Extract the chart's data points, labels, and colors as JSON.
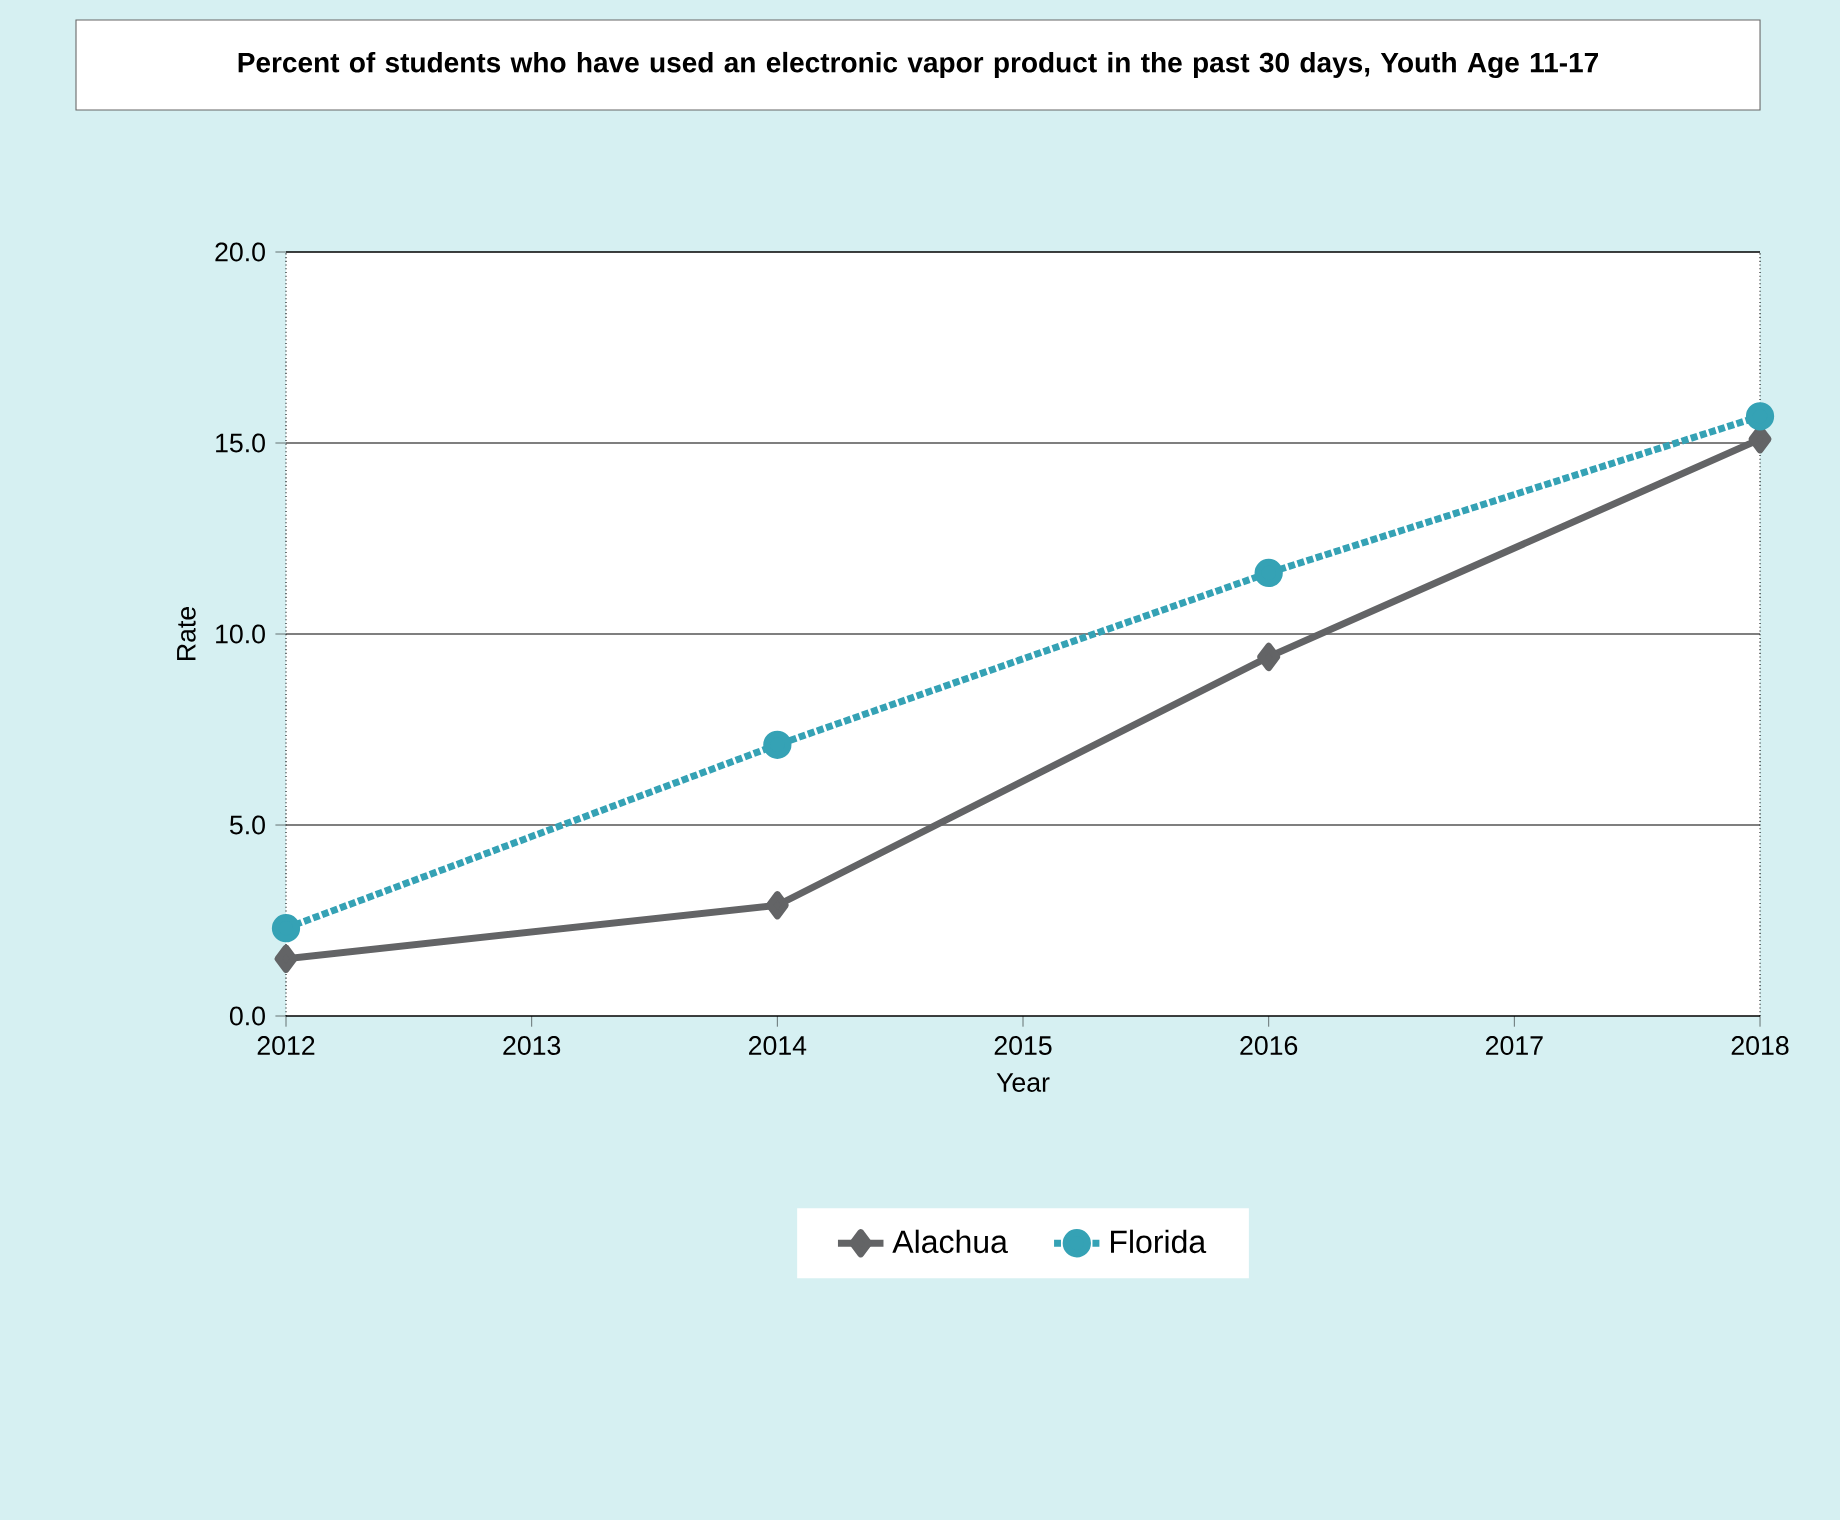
{
  "chart_data": {
    "type": "line",
    "title": "Percent of students who have used an electronic vapor product in the past 30 days, Youth Age 11-17",
    "xlabel": "Year",
    "ylabel": "Rate",
    "x": [
      2012,
      2014,
      2016,
      2018
    ],
    "series": [
      {
        "name": "Alachua",
        "color": "#636466",
        "marker": "diamond",
        "line_style": "solid",
        "values": [
          1.5,
          2.9,
          9.4,
          15.1
        ]
      },
      {
        "name": "Florida",
        "color": "#35a2b5",
        "marker": "circle",
        "line_style": "dotted",
        "values": [
          2.3,
          7.1,
          11.6,
          15.7
        ]
      }
    ],
    "xlim": [
      2012,
      2018
    ],
    "xticks": [
      2012,
      2013,
      2014,
      2015,
      2016,
      2017,
      2018
    ],
    "ylim": [
      0,
      20
    ],
    "yticks": [
      {
        "value": 0,
        "label": "0.0"
      },
      {
        "value": 5,
        "label": "5.0"
      },
      {
        "value": 10,
        "label": "10.0"
      },
      {
        "value": 15,
        "label": "15.0"
      },
      {
        "value": 20,
        "label": "20.0"
      }
    ],
    "grid": "y",
    "legend": "bottom"
  }
}
